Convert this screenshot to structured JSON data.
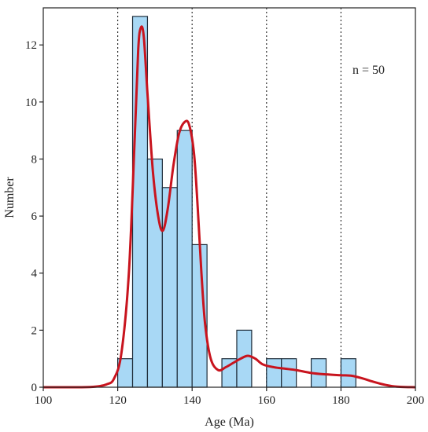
{
  "chart_data": {
    "type": "bar",
    "subtype": "histogram-with-density-curve",
    "xlabel": "Age (Ma)",
    "ylabel": "Number",
    "xlim": [
      100,
      200
    ],
    "ylim": [
      0,
      13.3
    ],
    "x_ticks": [
      100,
      120,
      140,
      160,
      180,
      200
    ],
    "y_ticks": [
      0,
      2,
      4,
      6,
      8,
      10,
      12
    ],
    "reference_lines_x": [
      120,
      140,
      160,
      180
    ],
    "annotation": "n = 50",
    "bin_width": 4,
    "bins": [
      {
        "start": 120,
        "end": 124,
        "count": 1
      },
      {
        "start": 124,
        "end": 128,
        "count": 13
      },
      {
        "start": 128,
        "end": 132,
        "count": 8
      },
      {
        "start": 132,
        "end": 136,
        "count": 7
      },
      {
        "start": 136,
        "end": 140,
        "count": 9
      },
      {
        "start": 140,
        "end": 144,
        "count": 5
      },
      {
        "start": 148,
        "end": 152,
        "count": 1
      },
      {
        "start": 152,
        "end": 156,
        "count": 2
      },
      {
        "start": 160,
        "end": 164,
        "count": 1
      },
      {
        "start": 164,
        "end": 168,
        "count": 1
      },
      {
        "start": 172,
        "end": 176,
        "count": 1
      },
      {
        "start": 180,
        "end": 184,
        "count": 1
      }
    ],
    "density_curve": [
      [
        100,
        0
      ],
      [
        110,
        0
      ],
      [
        114,
        0.02
      ],
      [
        117,
        0.1
      ],
      [
        119,
        0.3
      ],
      [
        121,
        1.2
      ],
      [
        123,
        4
      ],
      [
        124.5,
        8.5
      ],
      [
        125.5,
        11.8
      ],
      [
        126.2,
        12.6
      ],
      [
        127,
        12.3
      ],
      [
        128,
        10.3
      ],
      [
        129.5,
        7.5
      ],
      [
        131,
        5.9
      ],
      [
        132.2,
        5.5
      ],
      [
        133.5,
        6.3
      ],
      [
        135,
        7.8
      ],
      [
        136.5,
        8.9
      ],
      [
        138,
        9.3
      ],
      [
        139.2,
        9.2
      ],
      [
        140.5,
        8.2
      ],
      [
        141.5,
        6.3
      ],
      [
        142.5,
        4
      ],
      [
        143.5,
        2.2
      ],
      [
        145,
        1
      ],
      [
        147,
        0.6
      ],
      [
        149,
        0.7
      ],
      [
        151,
        0.85
      ],
      [
        153,
        1
      ],
      [
        155,
        1.1
      ],
      [
        157,
        1
      ],
      [
        159,
        0.8
      ],
      [
        162,
        0.7
      ],
      [
        165,
        0.65
      ],
      [
        168,
        0.6
      ],
      [
        172,
        0.5
      ],
      [
        176,
        0.45
      ],
      [
        180,
        0.42
      ],
      [
        183,
        0.4
      ],
      [
        186,
        0.3
      ],
      [
        189,
        0.18
      ],
      [
        192,
        0.08
      ],
      [
        195,
        0.02
      ],
      [
        200,
        0
      ]
    ],
    "colors": {
      "bar_fill": "#a8d8f5",
      "bar_stroke": "#1f2d3a",
      "curve": "#c8141e",
      "reference_line": "#333333",
      "axis": "#222222"
    },
    "grid": false,
    "legend": "none"
  }
}
